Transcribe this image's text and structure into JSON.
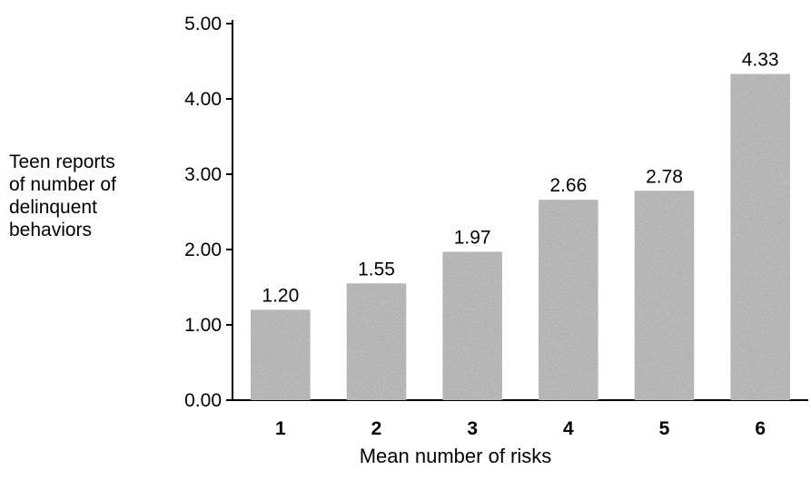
{
  "chart_data": {
    "type": "bar",
    "categories": [
      "1",
      "2",
      "3",
      "4",
      "5",
      "6"
    ],
    "values": [
      1.2,
      1.55,
      1.97,
      2.66,
      2.78,
      4.33
    ],
    "data_labels": [
      "1.20",
      "1.55",
      "1.97",
      "2.66",
      "2.78",
      "4.33"
    ],
    "ylabel_lines": [
      "Teen reports",
      "of number of",
      "delinquent",
      "behaviors"
    ],
    "xlabel": "Mean number of risks",
    "yticks": [
      "0.00",
      "1.00",
      "2.00",
      "3.00",
      "4.00",
      "5.00"
    ],
    "ylim": [
      0,
      5
    ],
    "grid": false,
    "bar_color": "#a9a9a9"
  }
}
